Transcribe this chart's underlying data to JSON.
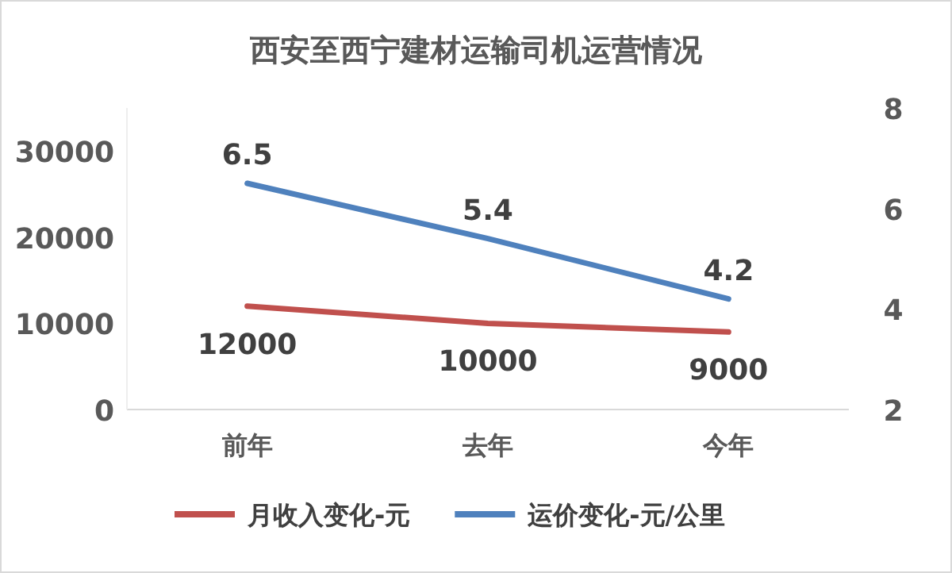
{
  "chart_data": {
    "type": "line",
    "title": "西安至西宁建材运输司机运营情况",
    "categories": [
      "前年",
      "去年",
      "今年"
    ],
    "series": [
      {
        "name": "月收入变化-元",
        "color": "#c0504d",
        "values": [
          12000,
          10000,
          9000
        ]
      },
      {
        "name": "运价变化-元/公里",
        "color": "#4f81bd",
        "values": [
          6.5,
          5.4,
          4.2
        ],
        "axis": "y2"
      }
    ],
    "ylim": [
      0,
      35000
    ],
    "yticks": [
      0,
      10000,
      20000,
      30000
    ],
    "y2lim": [
      2,
      8
    ],
    "y2ticks": [
      2,
      4,
      6,
      8
    ],
    "data_labels": true,
    "legend": "bottom",
    "grid": false,
    "marker": "none",
    "line_style": "solid"
  }
}
